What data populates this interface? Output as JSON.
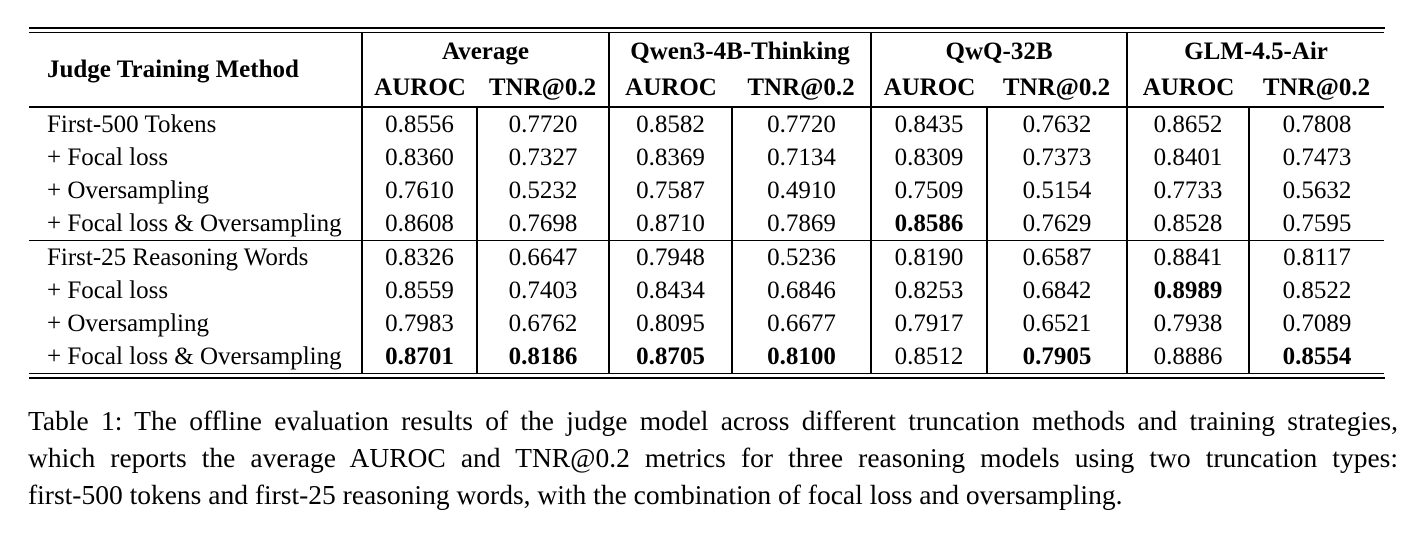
{
  "table": {
    "corner_header": "Judge Training Method",
    "column_groups": [
      {
        "label": "Average",
        "subcolumns": [
          "AUROC",
          "TNR@0.2"
        ]
      },
      {
        "label": "Qwen3-4B-Thinking",
        "subcolumns": [
          "AUROC",
          "TNR@0.2"
        ]
      },
      {
        "label": "QwQ-32B",
        "subcolumns": [
          "AUROC",
          "TNR@0.2"
        ]
      },
      {
        "label": "GLM-4.5-Air",
        "subcolumns": [
          "AUROC",
          "TNR@0.2"
        ]
      }
    ],
    "sections": [
      {
        "name": "first-500-tokens",
        "rows": [
          {
            "method": "First-500 Tokens",
            "values": [
              "0.8556",
              "0.7720",
              "0.8582",
              "0.7720",
              "0.8435",
              "0.7632",
              "0.8652",
              "0.7808"
            ],
            "bold": []
          },
          {
            "method": "+ Focal loss",
            "values": [
              "0.8360",
              "0.7327",
              "0.8369",
              "0.7134",
              "0.8309",
              "0.7373",
              "0.8401",
              "0.7473"
            ],
            "bold": []
          },
          {
            "method": "+ Oversampling",
            "values": [
              "0.7610",
              "0.5232",
              "0.7587",
              "0.4910",
              "0.7509",
              "0.5154",
              "0.7733",
              "0.5632"
            ],
            "bold": []
          },
          {
            "method": "+ Focal loss & Oversampling",
            "values": [
              "0.8608",
              "0.7698",
              "0.8710",
              "0.7869",
              "0.8586",
              "0.7629",
              "0.8528",
              "0.7595"
            ],
            "bold": [
              4
            ]
          }
        ]
      },
      {
        "name": "first-25-reasoning-words",
        "rows": [
          {
            "method": "First-25 Reasoning Words",
            "values": [
              "0.8326",
              "0.6647",
              "0.7948",
              "0.5236",
              "0.8190",
              "0.6587",
              "0.8841",
              "0.8117"
            ],
            "bold": []
          },
          {
            "method": "+ Focal loss",
            "values": [
              "0.8559",
              "0.7403",
              "0.8434",
              "0.6846",
              "0.8253",
              "0.6842",
              "0.8989",
              "0.8522"
            ],
            "bold": [
              6
            ]
          },
          {
            "method": "+ Oversampling",
            "values": [
              "0.7983",
              "0.6762",
              "0.8095",
              "0.6677",
              "0.7917",
              "0.6521",
              "0.7938",
              "0.7089"
            ],
            "bold": []
          },
          {
            "method": "+ Focal loss & Oversampling",
            "values": [
              "0.8701",
              "0.8186",
              "0.8705",
              "0.8100",
              "0.8512",
              "0.7905",
              "0.8886",
              "0.8554"
            ],
            "bold": [
              0,
              1,
              2,
              3,
              5,
              7
            ]
          }
        ]
      }
    ]
  },
  "caption": {
    "lines": [
      "Table 1: The offline evaluation results of the judge model across different truncation methods and training strategies,",
      "which reports the average AUROC and TNR@0.2 metrics for three reasoning models using two truncation types:",
      "first-500 tokens and first-25 reasoning words, with the combination of focal loss and oversampling."
    ]
  }
}
